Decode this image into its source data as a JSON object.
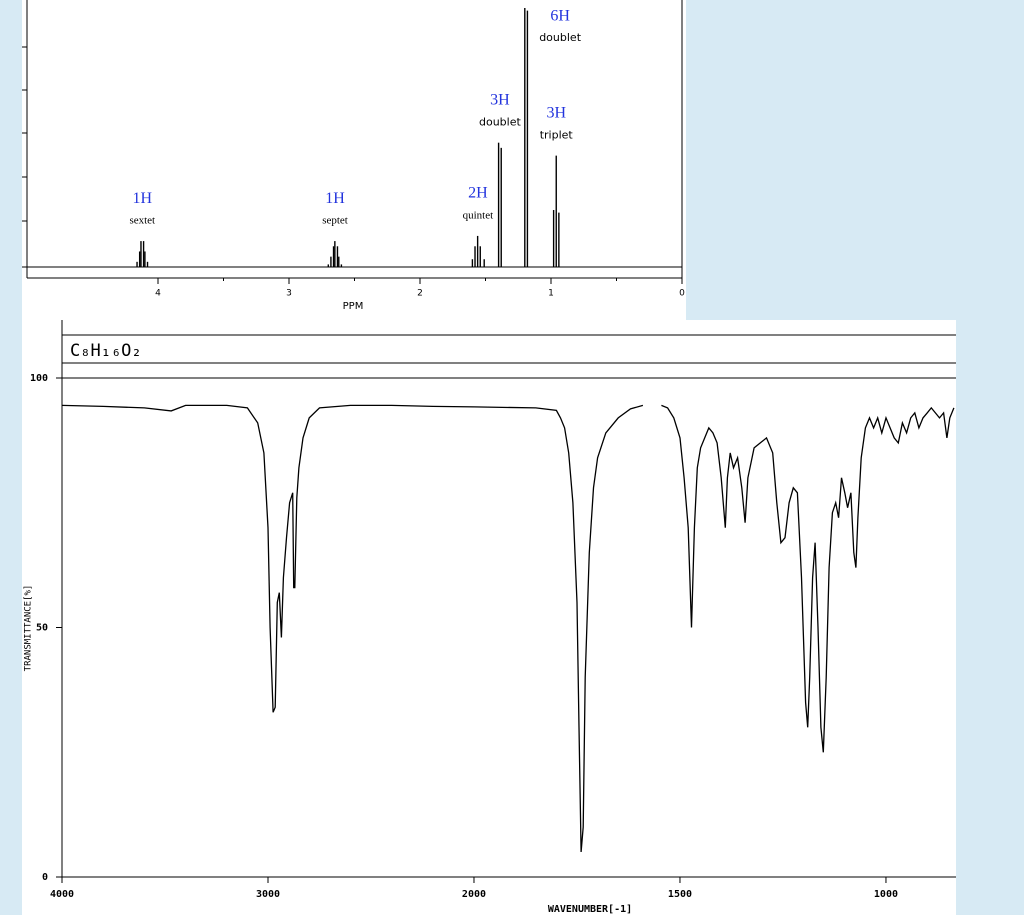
{
  "chart_data": [
    {
      "type": "stick",
      "xlabel": "PPM",
      "xlim": [
        5,
        0
      ],
      "xticks": [
        4,
        3,
        2,
        1,
        0
      ],
      "ylim": [
        0,
        100
      ],
      "color": "#000000",
      "label_color": "#2233dd",
      "multiplets": [
        {
          "label": "1H",
          "multiplicity": "sextet",
          "x": [
            4.16,
            4.14,
            4.13,
            4.11,
            4.1,
            4.08
          ],
          "values": [
            2,
            6,
            10,
            10,
            6,
            2
          ]
        },
        {
          "label": "1H",
          "multiplicity": "septet",
          "x": [
            2.7,
            2.68,
            2.66,
            2.65,
            2.63,
            2.62,
            2.6
          ],
          "values": [
            1,
            4,
            8,
            10,
            8,
            4,
            1
          ]
        },
        {
          "label": "2H",
          "multiplicity": "quintet",
          "x": [
            1.6,
            1.58,
            1.56,
            1.54,
            1.51
          ],
          "values": [
            3,
            8,
            12,
            8,
            3
          ]
        },
        {
          "label": "3H",
          "multiplicity": "doublet",
          "x": [
            1.4,
            1.38
          ],
          "values": [
            48,
            46
          ]
        },
        {
          "label": "6H",
          "multiplicity": "doublet",
          "x": [
            1.2,
            1.18
          ],
          "values": [
            100,
            99
          ]
        },
        {
          "label": "3H",
          "multiplicity": "triplet",
          "x": [
            0.98,
            0.96,
            0.94
          ],
          "values": [
            22,
            43,
            21
          ]
        }
      ]
    },
    {
      "type": "line",
      "title": "C₈H₁₆O₂",
      "xlabel": "WAVENUMBER[-1]",
      "ylabel": "TRANSMITTANCE[%]",
      "xscale": "tick-spaced",
      "xlim": [
        4000,
        830
      ],
      "xticks": [
        4000,
        3000,
        2000,
        1500,
        1000
      ],
      "ylim": [
        0,
        100
      ],
      "yticks": [
        0,
        50,
        100
      ],
      "series": [
        {
          "color": "#000000",
          "x": [
            4000,
            3800,
            3600,
            3470,
            3400,
            3200,
            3100,
            3050,
            3020,
            3000,
            2990,
            2975,
            2965,
            2955,
            2945,
            2935,
            2925,
            2910,
            2895,
            2880,
            2875,
            2870,
            2860,
            2850,
            2830,
            2800,
            2750,
            2600,
            2400,
            2200,
            2000,
            1850,
            1800,
            1790,
            1780,
            1770,
            1760,
            1750,
            1745,
            1740,
            1735,
            1730,
            1720,
            1710,
            1700,
            1680,
            1650,
            1620,
            1590,
            1570,
            1545,
            1530,
            1515,
            1500,
            1490,
            1480,
            1472,
            1465,
            1458,
            1450,
            1440,
            1430,
            1420,
            1410,
            1400,
            1390,
            1385,
            1378,
            1370,
            1360,
            1350,
            1342,
            1335,
            1320,
            1305,
            1290,
            1275,
            1265,
            1255,
            1245,
            1235,
            1225,
            1215,
            1205,
            1195,
            1190,
            1185,
            1178,
            1172,
            1165,
            1158,
            1152,
            1145,
            1138,
            1130,
            1122,
            1115,
            1108,
            1100,
            1093,
            1085,
            1078,
            1073,
            1068,
            1060,
            1050,
            1040,
            1030,
            1020,
            1010,
            1000,
            990,
            980,
            970,
            960,
            950,
            940,
            930,
            920,
            910,
            900,
            890,
            880,
            870,
            860,
            852,
            845,
            835
          ],
          "values": [
            94.5,
            94.3,
            94,
            93.4,
            94.5,
            94.5,
            94,
            91,
            85,
            70,
            50,
            33,
            34,
            55,
            57,
            48,
            60,
            68,
            75,
            77,
            58,
            58,
            76,
            82,
            88,
            92,
            94,
            94.5,
            94.5,
            94.3,
            94.2,
            94,
            93.5,
            92,
            90,
            85,
            75,
            55,
            30,
            5,
            10,
            40,
            65,
            78,
            84,
            89,
            92,
            93.8,
            94.5,
            null,
            94.5,
            94,
            92,
            88,
            80,
            70,
            50,
            70,
            82,
            86,
            88,
            90,
            89,
            87,
            80,
            70,
            80,
            85,
            82,
            84,
            78,
            71,
            80,
            86,
            87,
            88,
            85,
            75,
            67,
            68,
            75,
            78,
            77,
            60,
            35,
            30,
            40,
            60,
            67,
            50,
            30,
            25,
            40,
            62,
            73,
            75,
            72,
            80,
            77,
            74,
            77,
            65,
            62,
            72,
            84,
            90,
            92,
            90,
            92,
            89,
            92,
            90,
            88,
            87,
            91,
            89,
            92,
            93,
            90,
            92,
            93,
            94,
            93,
            92,
            93,
            88,
            92,
            94
          ]
        }
      ]
    }
  ]
}
